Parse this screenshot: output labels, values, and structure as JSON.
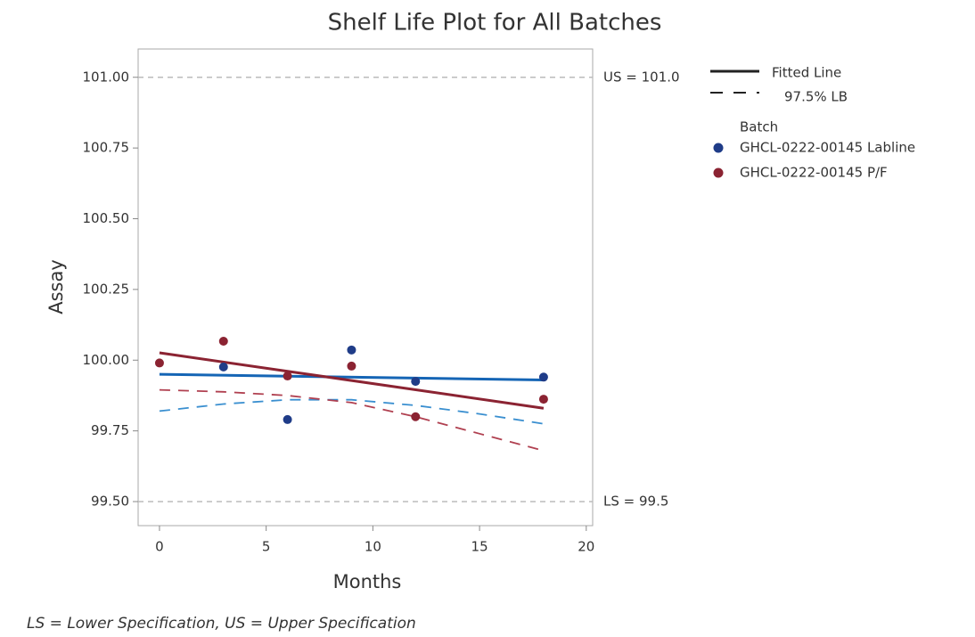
{
  "chart_data": {
    "type": "scatter",
    "title": "Shelf Life Plot for All Batches",
    "xlabel": "Months",
    "ylabel": "Assay",
    "xlim": [
      -1,
      20.3
    ],
    "ylim": [
      99.415,
      101.1
    ],
    "xticks": [
      0,
      5,
      10,
      15,
      20
    ],
    "yticks": [
      {
        "value": 99.5,
        "label": "99.50"
      },
      {
        "value": 99.75,
        "label": "99.75"
      },
      {
        "value": 100,
        "label": "100.00"
      },
      {
        "value": 100.25,
        "label": "100.25"
      },
      {
        "value": 100.5,
        "label": "100.50"
      },
      {
        "value": 100.75,
        "label": "100.75"
      },
      {
        "value": 101,
        "label": "101.00"
      }
    ],
    "reference_lines": [
      {
        "value": 101,
        "label": "US = 101.0"
      },
      {
        "value": 99.5,
        "label": "LS = 99.5"
      }
    ],
    "legend_fitted": "Fitted Line",
    "legend_lb": "97.5% LB",
    "legend_title": "Batch",
    "series": [
      {
        "name": "GHCL-0222-00145 Labline",
        "color": "#1f3c88",
        "x": [
          3,
          6,
          9,
          12,
          18
        ],
        "values": [
          99.976,
          99.79,
          100.036,
          99.925,
          99.94
        ]
      },
      {
        "name": "GHCL-0222-00145 P/F",
        "color": "#8b2332",
        "x": [
          0,
          3,
          6,
          9,
          12,
          18
        ],
        "values": [
          99.99,
          100.067,
          99.944,
          99.979,
          99.8,
          99.862
        ]
      }
    ],
    "fitted": [
      {
        "color": "#1565b5",
        "x": [
          0,
          18
        ],
        "values": [
          99.95,
          99.93
        ]
      },
      {
        "color": "#8b2332",
        "x": [
          0,
          18
        ],
        "values": [
          100.026,
          99.83
        ]
      }
    ],
    "lower_bounds": [
      {
        "color": "#3a8fd0",
        "x": [
          0,
          3,
          6,
          9,
          12,
          15,
          18
        ],
        "values": [
          99.82,
          99.845,
          99.86,
          99.86,
          99.84,
          99.81,
          99.775
        ]
      },
      {
        "color": "#b04050",
        "x": [
          0,
          3,
          6,
          9,
          12,
          15,
          18
        ],
        "values": [
          99.895,
          99.888,
          99.875,
          99.85,
          99.8,
          99.74,
          99.68
        ]
      }
    ],
    "footnote": "LS = Lower Specification, US = Upper Specification"
  }
}
